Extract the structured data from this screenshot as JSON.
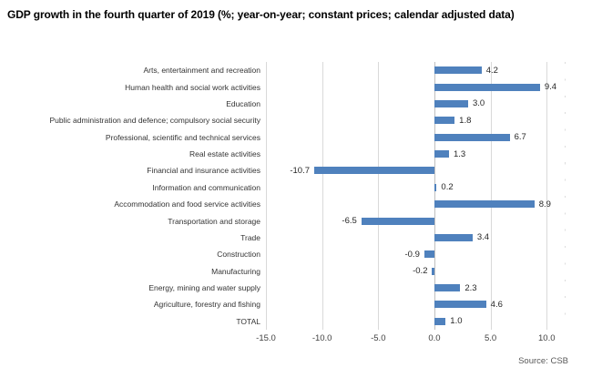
{
  "title": "GDP growth in the fourth quarter of 2019 (%; year-on-year; constant prices; calendar adjusted data)",
  "source_note": "Source: CSB",
  "colors": {
    "bar": "#4F81BD",
    "grid": "#D9D9D9",
    "zero_line": "#BFBFBF",
    "edge_ticks": "#DCDCDC",
    "label_text": "#333333",
    "value_text": "#262626",
    "muted_text": "#595959"
  },
  "chart_data": {
    "type": "bar",
    "orientation": "horizontal",
    "title": "GDP growth in the fourth quarter of 2019 (%; year-on-year; constant prices; calendar adjusted data)",
    "categories": [
      "Arts, entertainment and recreation",
      "Human health and social work activities",
      "Education",
      "Public administration and defence; compulsory social security",
      "Professional, scientific and technical services",
      "Real estate activities",
      "Financial and insurance activities",
      "Information and communication",
      "Accommodation and food service activities",
      "Transportation and storage",
      "Trade",
      "Construction",
      "Manufacturing",
      "Energy, mining and water supply",
      "Agriculture, forestry and fishing",
      "TOTAL"
    ],
    "values": [
      4.2,
      9.4,
      3.0,
      1.8,
      6.7,
      1.3,
      -10.7,
      0.2,
      8.9,
      -6.5,
      3.4,
      -0.9,
      -0.2,
      2.3,
      4.6,
      1.0
    ],
    "value_labels": [
      "4.2",
      "9.4",
      "3.0",
      "1.8",
      "6.7",
      "1.3",
      "-10.7",
      "0.2",
      "8.9",
      "-6.5",
      "3.4",
      "-0.9",
      "-0.2",
      "2.3",
      "4.6",
      "1.0"
    ],
    "xlim": [
      -15,
      11.6
    ],
    "xticks": [
      -15,
      -10,
      -5,
      0,
      5,
      10
    ],
    "xtick_labels": [
      "-15.0",
      "-10.0",
      "-5.0",
      "0.0",
      "5.0",
      "10.0"
    ],
    "grid": "vertical",
    "legend": "none",
    "bar_color": "#4F81BD",
    "source": "Source: CSB"
  }
}
